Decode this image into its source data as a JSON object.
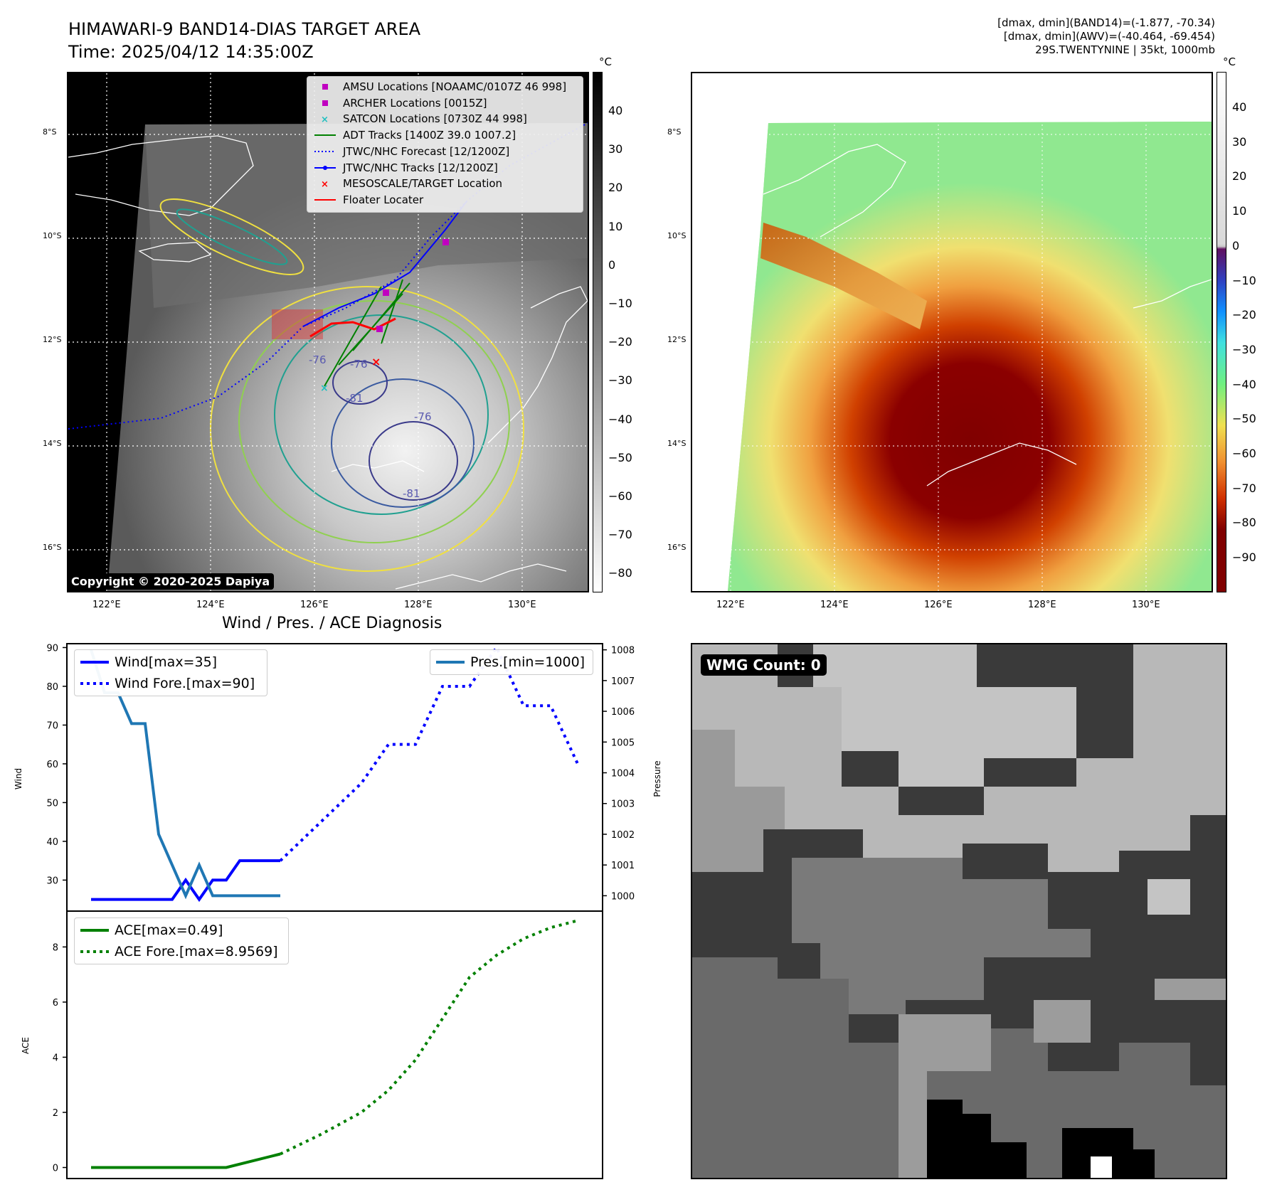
{
  "header": {
    "title_line1": "HIMAWARI-9 BAND14-DIAS TARGET AREA",
    "title_line2": "Time: 2025/04/12 14:35:00Z",
    "info_line1": "[dmax, dmin](BAND14)=(-1.877, -70.34)",
    "info_line2": "[dmax, dmin](AWV)=(-40.464, -69.454)",
    "info_line3": "29S.TWENTYNINE | 35kt, 1000mb"
  },
  "map_axes": {
    "lon_ticks": [
      "122°E",
      "124°E",
      "126°E",
      "128°E",
      "130°E"
    ],
    "lat_ticks": [
      "8°S",
      "10°S",
      "12°S",
      "14°S",
      "16°S"
    ]
  },
  "ir_panel": {
    "legend": [
      {
        "label": "AMSU Locations [NOAAMC/0107Z 46 998]",
        "marker": "square",
        "color": "#c000c0"
      },
      {
        "label": "ARCHER Locations [0015Z]",
        "marker": "square",
        "color": "#c000c0"
      },
      {
        "label": "SATCON Locations [0730Z 44 998]",
        "marker": "x",
        "color": "#20c0c0"
      },
      {
        "label": "ADT Tracks [1400Z 39.0 1007.2]",
        "marker": "line",
        "color": "#008000"
      },
      {
        "label": "JTWC/NHC Forecast [12/1200Z]",
        "marker": "dotted",
        "color": "#0000ff"
      },
      {
        "label": "JTWC/NHC Tracks [12/1200Z]",
        "marker": "line-dot",
        "color": "#0000ff"
      },
      {
        "label": "MESOSCALE/TARGET Location",
        "marker": "x",
        "color": "#ff0000"
      },
      {
        "label": "Floater Locater",
        "marker": "line",
        "color": "#ff0000"
      }
    ],
    "contour_labels": [
      "-76",
      "-81",
      "-76",
      "-81",
      "-76"
    ],
    "colorbar": {
      "unit": "°C",
      "ticks": [
        "40",
        "30",
        "20",
        "10",
        "0",
        "−10",
        "−20",
        "−30",
        "−40",
        "−50",
        "−60",
        "−70",
        "−80"
      ]
    },
    "copyright": "Copyright © 2020-2025 Dapiya"
  },
  "awv_panel": {
    "colorbar": {
      "unit": "°C",
      "ticks": [
        "40",
        "30",
        "20",
        "10",
        "0",
        "−10",
        "−20",
        "−30",
        "−40",
        "−50",
        "−60",
        "−70",
        "−80",
        "−90"
      ]
    }
  },
  "chart_data": [
    {
      "type": "line",
      "title": "Wind / Pres. / ACE Diagnosis",
      "ylabel": "Wind",
      "ylabel_right": "Pressure",
      "ylim": [
        22,
        91
      ],
      "ylim_right": [
        999.5,
        1008.2
      ],
      "yticks": [
        30,
        40,
        50,
        60,
        70,
        80,
        90
      ],
      "yticks_right": [
        1000,
        1001,
        1002,
        1003,
        1004,
        1005,
        1006,
        1007,
        1008
      ],
      "series": [
        {
          "name": "Wind[max=35]",
          "axis": "left",
          "style": "solid",
          "color": "#0000ff",
          "x": [
            0,
            1,
            2,
            3,
            4,
            5,
            6,
            7,
            8,
            9,
            10,
            11,
            12,
            13,
            14
          ],
          "values": [
            25,
            25,
            25,
            25,
            25,
            25,
            25,
            30,
            25,
            30,
            30,
            35,
            35,
            35,
            35
          ]
        },
        {
          "name": "Wind Fore.[max=90]",
          "axis": "left",
          "style": "dotted",
          "color": "#0000ff",
          "x": [
            14,
            17,
            20,
            22,
            24,
            26,
            28,
            30,
            32,
            34,
            36
          ],
          "values": [
            35,
            45,
            55,
            65,
            65,
            80,
            80,
            90,
            75,
            75,
            60
          ]
        },
        {
          "name": "Pres.[min=1000]",
          "axis": "right",
          "style": "solid",
          "color": "#1f77b4",
          "x": [
            0,
            1,
            2,
            3,
            4,
            5,
            6,
            7,
            8,
            9,
            10,
            11,
            12,
            13,
            14
          ],
          "values": [
            1008,
            1006.6,
            1006.6,
            1005.6,
            1005.6,
            1002,
            1001,
            1000,
            1001,
            1000,
            1000,
            1000,
            1000,
            1000,
            1000
          ]
        }
      ]
    },
    {
      "type": "line",
      "ylabel": "ACE",
      "ylim": [
        -0.4,
        9.3
      ],
      "yticks": [
        0,
        2,
        4,
        6,
        8
      ],
      "series": [
        {
          "name": "ACE[max=0.49]",
          "style": "solid",
          "color": "#008000",
          "x": [
            0,
            10,
            14
          ],
          "values": [
            0,
            0,
            0.49
          ]
        },
        {
          "name": "ACE Fore.[max=8.9569]",
          "style": "dotted",
          "color": "#008000",
          "x": [
            14,
            17,
            20,
            22,
            24,
            26,
            28,
            30,
            32,
            34,
            36
          ],
          "values": [
            0.49,
            1.2,
            2.0,
            2.8,
            3.9,
            5.4,
            6.9,
            7.7,
            8.3,
            8.7,
            8.9569
          ]
        }
      ]
    }
  ],
  "wmg_panel": {
    "label": "WMG Count: 0"
  }
}
